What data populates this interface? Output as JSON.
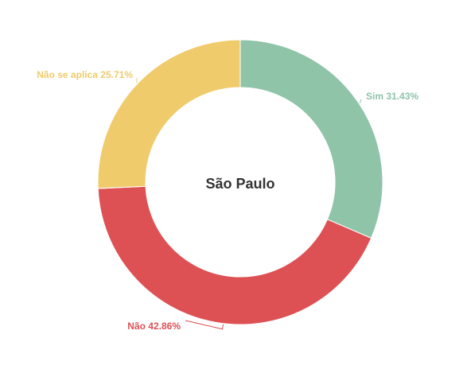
{
  "chart_data": {
    "type": "pie",
    "variant": "donut",
    "center_label": "São Paulo",
    "slices": [
      {
        "name": "Sim",
        "value": 31.43,
        "label": "Sim 31.43%",
        "color": "#8fc4a8"
      },
      {
        "name": "Não",
        "value": 42.86,
        "label": "Não 42.86%",
        "color": "#dd5155"
      },
      {
        "name": "Não se aplica",
        "value": 25.71,
        "label": "Não se aplica 25.71%",
        "color": "#efcb6b"
      }
    ]
  }
}
